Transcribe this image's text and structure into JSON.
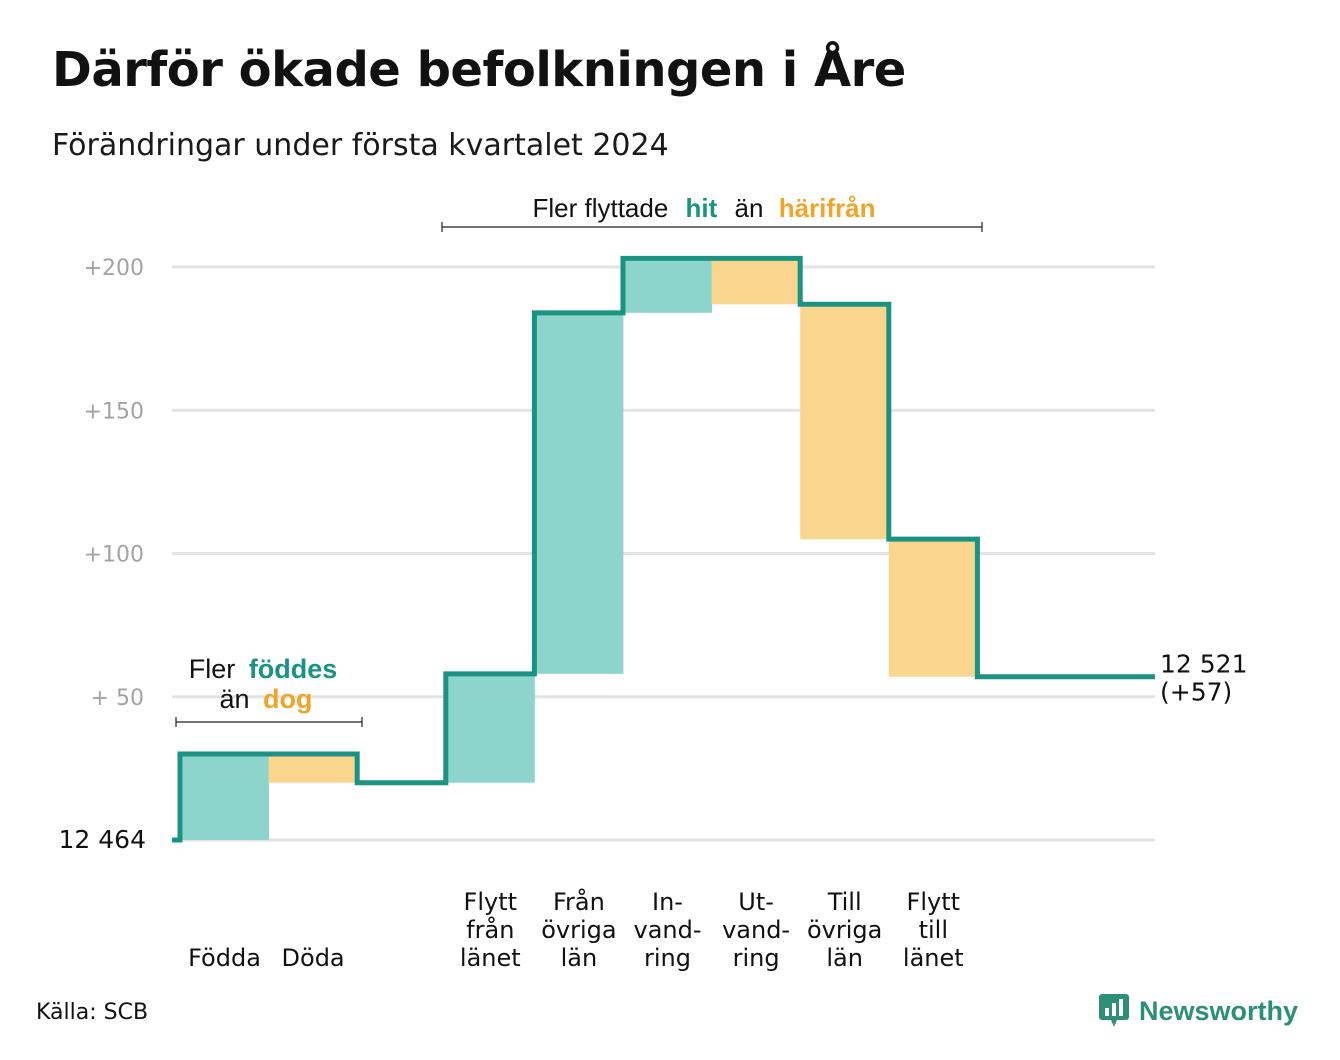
{
  "title": "Därför ökade befolkningen i Åre",
  "subtitle": "Förändringar under första kvartalet 2024",
  "source": "Källa: SCB",
  "brand": "Newsworthy",
  "colors": {
    "increase": "#8dd5cc",
    "decrease": "#fad58d",
    "line": "#1a9382",
    "teal_text": "#1a9382",
    "orange_text": "#f0a429",
    "grid": "#e3e3e3",
    "tick": "#a3a3a3"
  },
  "annotations": {
    "births": {
      "line1_prefix": "Fler",
      "line1_highlight": "föddes",
      "line2_prefix": "än",
      "line2_highlight": "dog"
    },
    "migration": {
      "prefix": "Fler flyttade",
      "highlight1": "hit",
      "middle": "än",
      "highlight2": "härifrån"
    }
  },
  "chart_data": {
    "type": "waterfall",
    "title": "Därför ökade befolkningen i Åre",
    "subtitle": "Förändringar under första kvartalet 2024",
    "start_label": "12 464",
    "start_value": 0,
    "end_label": [
      "12 521",
      "(+57)"
    ],
    "end_value": 57,
    "ylim": [
      0,
      200
    ],
    "yticks": [
      {
        "value": 200,
        "label": "+200"
      },
      {
        "value": 150,
        "label": "+150"
      },
      {
        "value": 100,
        "label": "+100"
      },
      {
        "value": 50,
        "label": "+  50"
      }
    ],
    "grid": true,
    "steps": [
      {
        "label": [
          "Födda"
        ],
        "change": 30,
        "kind": "increase"
      },
      {
        "label": [
          "Döda"
        ],
        "change": -10,
        "kind": "decrease"
      },
      {
        "label": [],
        "change": 0,
        "kind": "gap"
      },
      {
        "label": [
          "Flytt",
          "från",
          "länet"
        ],
        "change": 38,
        "kind": "increase"
      },
      {
        "label": [
          "Från",
          "övriga",
          "län"
        ],
        "change": 126,
        "kind": "increase"
      },
      {
        "label": [
          "In-",
          "vand-",
          "ring"
        ],
        "change": 19,
        "kind": "increase"
      },
      {
        "label": [
          "Ut-",
          "vand-",
          "ring"
        ],
        "change": -16,
        "kind": "decrease"
      },
      {
        "label": [
          "Till",
          "övriga",
          "län"
        ],
        "change": -82,
        "kind": "decrease"
      },
      {
        "label": [
          "Flytt",
          "till",
          "länet"
        ],
        "change": -48,
        "kind": "decrease"
      }
    ]
  }
}
